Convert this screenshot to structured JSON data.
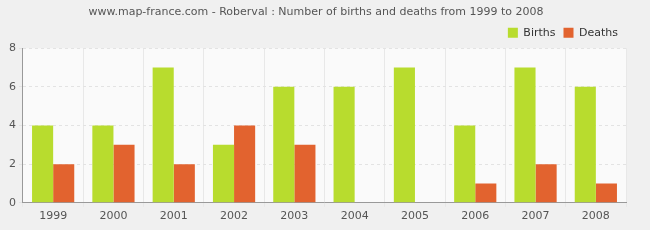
{
  "chart_data": {
    "type": "bar",
    "title": "www.map-france.com - Roberval : Number of births and deaths from 1999 to 2008",
    "categories": [
      "1999",
      "2000",
      "2001",
      "2002",
      "2003",
      "2004",
      "2005",
      "2006",
      "2007",
      "2008"
    ],
    "series": [
      {
        "name": "Births",
        "color": "#b8dc2e",
        "values": [
          4,
          4,
          7,
          3,
          6,
          6,
          7,
          4,
          7,
          6
        ]
      },
      {
        "name": "Deaths",
        "color": "#e2632f",
        "values": [
          2,
          3,
          2,
          4,
          3,
          0,
          0,
          1,
          2,
          1
        ]
      }
    ],
    "ylim": [
      0,
      8
    ],
    "yticks": [
      0,
      2,
      4,
      6,
      8
    ],
    "grid": true,
    "legend": "upper right"
  }
}
